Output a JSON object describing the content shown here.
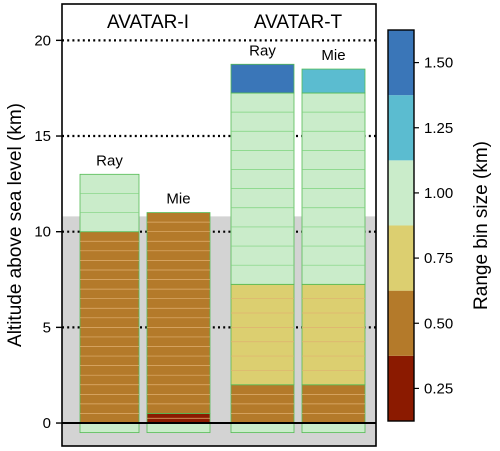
{
  "chart_data": {
    "type": "bar",
    "ylabel": "Altitude above sea level (km)",
    "ylim": [
      -1.2,
      21.9
    ],
    "yticks": [
      0,
      5,
      10,
      15,
      20
    ],
    "gridlines_dotted_at": [
      5,
      10,
      15,
      20
    ],
    "zero_line": 0,
    "ground_background": {
      "top": 10.8,
      "bottom": -1.2,
      "color": "#d3d3d3"
    },
    "groups": [
      {
        "title": "AVATAR-I"
      },
      {
        "title": "AVATAR-T"
      }
    ],
    "columns": [
      {
        "group": 0,
        "label": "Ray",
        "segments": [
          {
            "bottom": -0.5,
            "top": 0.0,
            "bin_size": 1.0,
            "lines": 0
          },
          {
            "bottom": 0.0,
            "top": 10.0,
            "bin_size": 0.5,
            "lines": 19
          },
          {
            "bottom": 10.0,
            "top": 13.0,
            "bin_size": 1.0,
            "lines": 2
          }
        ]
      },
      {
        "group": 0,
        "label": "Mie",
        "segments": [
          {
            "bottom": -0.5,
            "top": 0.0,
            "bin_size": 1.0,
            "lines": 0
          },
          {
            "bottom": 0.0,
            "top": 0.5,
            "bin_size": 0.25,
            "lines": 1
          },
          {
            "bottom": 0.5,
            "top": 11.0,
            "bin_size": 0.5,
            "lines": 20
          }
        ]
      },
      {
        "group": 1,
        "label": "Ray",
        "segments": [
          {
            "bottom": -0.5,
            "top": 0.0,
            "bin_size": 1.0,
            "lines": 0
          },
          {
            "bottom": 0.0,
            "top": 2.0,
            "bin_size": 0.5,
            "lines": 3
          },
          {
            "bottom": 2.0,
            "top": 7.25,
            "bin_size": 0.75,
            "lines": 6
          },
          {
            "bottom": 7.25,
            "top": 17.25,
            "bin_size": 1.0,
            "lines": 9
          },
          {
            "bottom": 17.25,
            "top": 18.75,
            "bin_size": 1.5,
            "lines": 0
          }
        ]
      },
      {
        "group": 1,
        "label": "Mie",
        "segments": [
          {
            "bottom": -0.5,
            "top": 0.0,
            "bin_size": 1.0,
            "lines": 0
          },
          {
            "bottom": 0.0,
            "top": 2.0,
            "bin_size": 0.5,
            "lines": 3
          },
          {
            "bottom": 2.0,
            "top": 7.25,
            "bin_size": 0.75,
            "lines": 6
          },
          {
            "bottom": 7.25,
            "top": 17.25,
            "bin_size": 1.0,
            "lines": 9
          },
          {
            "bottom": 17.25,
            "top": 18.5,
            "bin_size": 1.25,
            "lines": 0
          }
        ]
      }
    ],
    "colorbar": {
      "label": "Range bin size (km)",
      "ticks": [
        "0.25",
        "0.50",
        "0.75",
        "1.00",
        "1.25",
        "1.50"
      ],
      "bands": [
        {
          "bin_size": 0.25,
          "color": "#8b1a00"
        },
        {
          "bin_size": 0.5,
          "color": "#b47a2a"
        },
        {
          "bin_size": 0.75,
          "color": "#dccf70"
        },
        {
          "bin_size": 1.0,
          "color": "#caecca"
        },
        {
          "bin_size": 1.25,
          "color": "#5bbcd0"
        },
        {
          "bin_size": 1.5,
          "color": "#3a76b8"
        }
      ]
    },
    "colors": {
      "bin_line_light": "#7dd37d",
      "bin_line_dark": "#e0b070",
      "column_border": "#55bb55"
    }
  }
}
